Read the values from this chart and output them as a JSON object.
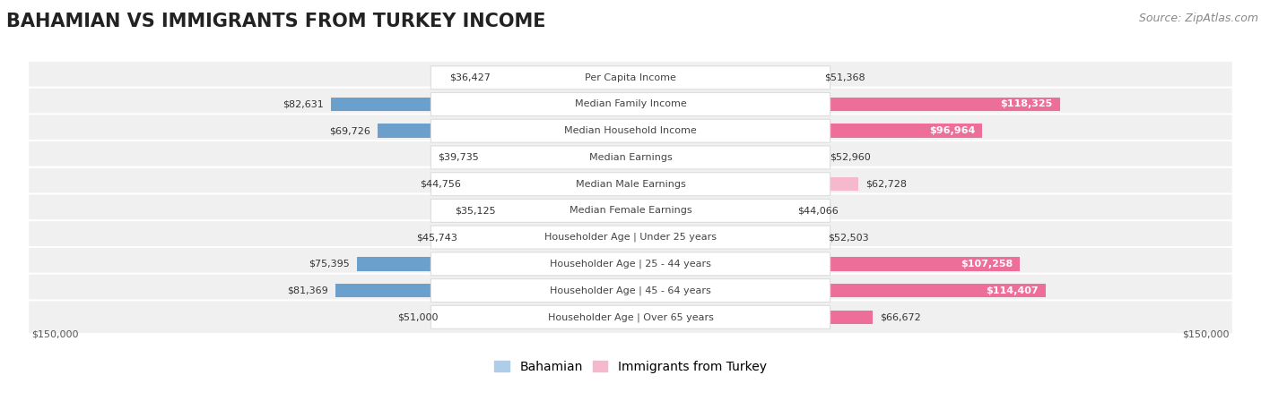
{
  "title": "BAHAMIAN VS IMMIGRANTS FROM TURKEY INCOME",
  "source": "Source: ZipAtlas.com",
  "categories": [
    "Per Capita Income",
    "Median Family Income",
    "Median Household Income",
    "Median Earnings",
    "Median Male Earnings",
    "Median Female Earnings",
    "Householder Age | Under 25 years",
    "Householder Age | 25 - 44 years",
    "Householder Age | 45 - 64 years",
    "Householder Age | Over 65 years"
  ],
  "bahamian_values": [
    36427,
    82631,
    69726,
    39735,
    44756,
    35125,
    45743,
    75395,
    81369,
    51000
  ],
  "turkey_values": [
    51368,
    118325,
    96964,
    52960,
    62728,
    44066,
    52503,
    107258,
    114407,
    66672
  ],
  "bahamian_color_light": "#AECDE8",
  "bahamian_color_dark": "#6CA0CC",
  "turkey_color_light": "#F5B8CC",
  "turkey_color_dark": "#EE6E9A",
  "max_value": 150000,
  "fig_bg": "#ffffff",
  "row_bg": "#f0f0f0",
  "row_border": "#e0e0e0",
  "label_bg": "#ffffff",
  "legend_bahamian": "Bahamian",
  "legend_turkey": "Immigrants from Turkey",
  "xlabel_left": "$150,000",
  "xlabel_right": "$150,000",
  "bahamian_labels": [
    "$36,427",
    "$82,631",
    "$69,726",
    "$39,735",
    "$44,756",
    "$35,125",
    "$45,743",
    "$75,395",
    "$81,369",
    "$51,000"
  ],
  "turkey_labels": [
    "$51,368",
    "$118,325",
    "$96,964",
    "$52,960",
    "$62,728",
    "$44,066",
    "$52,503",
    "$107,258",
    "$114,407",
    "$66,672"
  ],
  "turkey_label_white": [
    false,
    true,
    true,
    false,
    false,
    false,
    false,
    true,
    true,
    false
  ],
  "bahamian_label_dark": [
    false,
    false,
    false,
    false,
    false,
    false,
    false,
    false,
    false,
    false
  ],
  "title_fontsize": 15,
  "source_fontsize": 9,
  "label_fontsize": 8,
  "value_fontsize": 8,
  "legend_fontsize": 10
}
